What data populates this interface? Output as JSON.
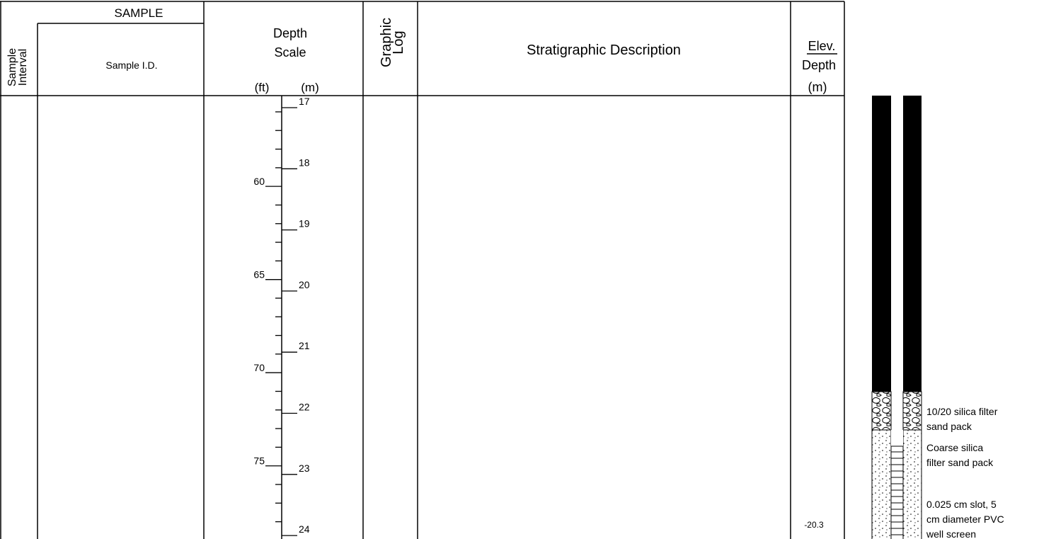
{
  "header": {
    "sample": "SAMPLE",
    "sample_interval": [
      "Sample",
      "Interval"
    ],
    "sample_id": "Sample I.D.",
    "depth_scale": [
      "Depth",
      "Scale"
    ],
    "units_ft": "(ft)",
    "units_m": "(m)",
    "graphic_log": [
      "Graphic",
      "Log"
    ],
    "description": "Stratigraphic Description",
    "elev": "Elev.",
    "depth": "Depth",
    "depth_unit": "(m)"
  },
  "depth_scale": {
    "ft_labels": [
      60,
      65,
      70,
      75
    ],
    "m_labels": [
      17,
      18,
      19,
      20,
      21,
      22,
      23,
      24
    ]
  },
  "elevation": {
    "value": -20.3
  },
  "well": {
    "labels": [
      [
        "10/20 silica filter",
        "sand pack"
      ],
      [
        "Coarse silica",
        "filter sand pack"
      ],
      [
        "0.025 cm slot, 5",
        "cm diameter PVC",
        "well screen"
      ]
    ]
  }
}
